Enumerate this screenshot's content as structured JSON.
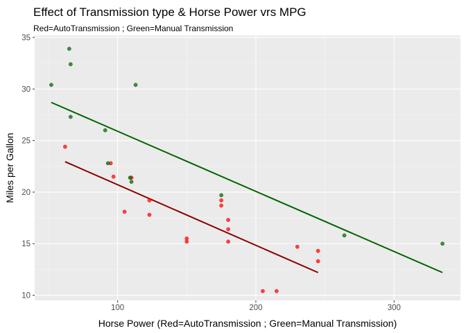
{
  "chart_data": {
    "type": "scatter",
    "title": "Effect of Transmission type & Horse Power vrs MPG",
    "subtitle": "Red=AutoTransmission ; Green=Manual Transmission",
    "xlabel": "Horse Power (Red=AutoTransmission ; Green=Manual Transmission)",
    "ylabel": "Miles per Gallon",
    "xlim": [
      40,
      348
    ],
    "ylim": [
      9.5,
      35.2
    ],
    "xticks": [
      100,
      200,
      300
    ],
    "yticks": [
      10,
      15,
      20,
      25,
      30,
      35
    ],
    "grid": true,
    "series": [
      {
        "color": "#ff0000",
        "line_color": "#8b0000",
        "points": [
          {
            "x": 62,
            "y": 24.4
          },
          {
            "x": 95,
            "y": 22.8
          },
          {
            "x": 97,
            "y": 21.5
          },
          {
            "x": 105,
            "y": 18.1
          },
          {
            "x": 110,
            "y": 21.4
          },
          {
            "x": 123,
            "y": 19.2
          },
          {
            "x": 123,
            "y": 17.8
          },
          {
            "x": 150,
            "y": 15.5
          },
          {
            "x": 150,
            "y": 15.2
          },
          {
            "x": 175,
            "y": 18.7
          },
          {
            "x": 175,
            "y": 19.2
          },
          {
            "x": 180,
            "y": 16.4
          },
          {
            "x": 180,
            "y": 17.3
          },
          {
            "x": 180,
            "y": 15.2
          },
          {
            "x": 205,
            "y": 10.4
          },
          {
            "x": 215,
            "y": 10.4
          },
          {
            "x": 230,
            "y": 14.7
          },
          {
            "x": 245,
            "y": 14.3
          },
          {
            "x": 245,
            "y": 13.3
          }
        ],
        "fit": [
          {
            "x": 62,
            "y": 22.95
          },
          {
            "x": 245,
            "y": 12.2
          }
        ]
      },
      {
        "color": "#006400",
        "line_color": "#006400",
        "points": [
          {
            "x": 52,
            "y": 30.4
          },
          {
            "x": 65,
            "y": 33.9
          },
          {
            "x": 66,
            "y": 32.4
          },
          {
            "x": 66,
            "y": 27.3
          },
          {
            "x": 91,
            "y": 26.0
          },
          {
            "x": 93,
            "y": 22.8
          },
          {
            "x": 109,
            "y": 21.4
          },
          {
            "x": 110,
            "y": 21.0
          },
          {
            "x": 113,
            "y": 30.4
          },
          {
            "x": 175,
            "y": 19.7
          },
          {
            "x": 264,
            "y": 15.8
          },
          {
            "x": 335,
            "y": 15.0
          }
        ],
        "fit": [
          {
            "x": 52,
            "y": 28.7
          },
          {
            "x": 335,
            "y": 12.2
          }
        ]
      }
    ]
  }
}
